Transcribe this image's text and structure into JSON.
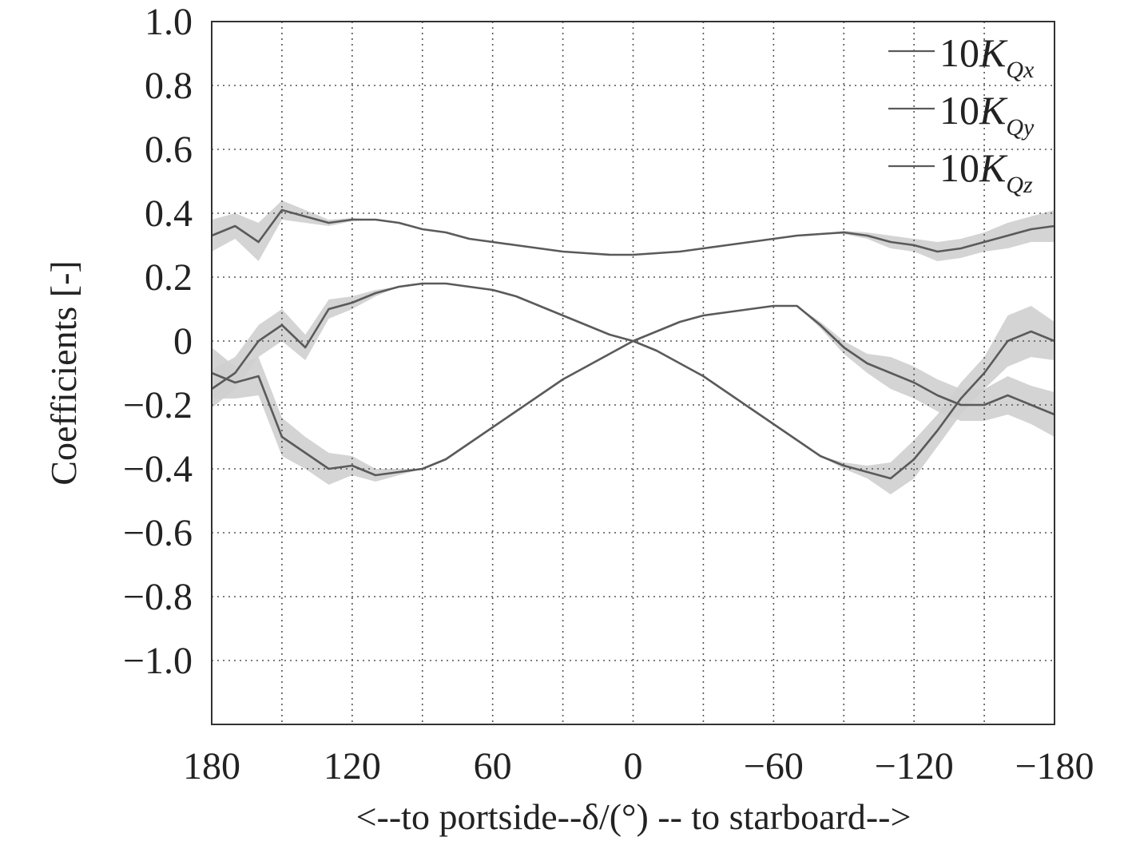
{
  "chart_data": {
    "type": "line",
    "title": "",
    "xlabel": "<--to portside--δ/(°) -- to starboard-->",
    "ylabel": "Coefficients [-]",
    "xlim": [
      180,
      -180
    ],
    "ylim": [
      -1.2,
      1.0
    ],
    "x_reversed": true,
    "x_ticks": [
      180,
      120,
      60,
      0,
      -60,
      -120,
      -180
    ],
    "x_tick_labels": [
      "180",
      "120",
      "60",
      "0",
      "−60",
      "−120",
      "−180"
    ],
    "y_ticks": [
      1.0,
      0.8,
      0.6,
      0.4,
      0.2,
      0,
      -0.2,
      -0.4,
      -0.6,
      -0.8,
      -1.0
    ],
    "y_tick_labels": [
      "1.0",
      "0.8",
      "0.6",
      "0.4",
      "0.2",
      "0",
      "−0.2",
      "−0.4",
      "−0.6",
      "−0.8",
      "−1.0"
    ],
    "grid": true,
    "grid_x_step": 30,
    "grid_y_step": 0.2,
    "legend_position": "top-right",
    "line_color": "#5a5a5a",
    "band_color": "#cfcfcf",
    "series": [
      {
        "name": "10K_Qx",
        "legend_prefix": "10",
        "legend_symbol": "K",
        "legend_sub": "Qx",
        "x": [
          180,
          170,
          160,
          150,
          140,
          130,
          120,
          110,
          100,
          90,
          80,
          70,
          60,
          50,
          40,
          30,
          20,
          10,
          0,
          -10,
          -20,
          -30,
          -40,
          -50,
          -60,
          -70,
          -80,
          -90,
          -100,
          -110,
          -120,
          -130,
          -140,
          -150,
          -160,
          -170,
          -180
        ],
        "values": [
          0.33,
          0.36,
          0.31,
          0.41,
          0.39,
          0.37,
          0.38,
          0.38,
          0.37,
          0.35,
          0.34,
          0.32,
          0.31,
          0.3,
          0.29,
          0.28,
          0.275,
          0.27,
          0.27,
          0.275,
          0.28,
          0.29,
          0.3,
          0.31,
          0.32,
          0.33,
          0.335,
          0.34,
          0.33,
          0.31,
          0.3,
          0.28,
          0.29,
          0.31,
          0.33,
          0.35,
          0.36
        ],
        "band": [
          0.05,
          0.04,
          0.06,
          0.03,
          0.02,
          0.01,
          0.005,
          0,
          0,
          0,
          0,
          0,
          0,
          0,
          0,
          0,
          0,
          0,
          0,
          0,
          0,
          0,
          0,
          0,
          0,
          0,
          0,
          0.005,
          0.01,
          0.02,
          0.02,
          0.03,
          0.03,
          0.03,
          0.04,
          0.04,
          0.05
        ]
      },
      {
        "name": "10K_Qy",
        "legend_prefix": "10",
        "legend_symbol": "K",
        "legend_sub": "Qy",
        "x": [
          180,
          170,
          160,
          150,
          140,
          130,
          120,
          110,
          100,
          90,
          80,
          70,
          60,
          50,
          40,
          30,
          20,
          10,
          0,
          -10,
          -20,
          -30,
          -40,
          -50,
          -60,
          -70,
          -80,
          -90,
          -100,
          -110,
          -120,
          -130,
          -140,
          -150,
          -160,
          -170,
          -180
        ],
        "values": [
          -0.15,
          -0.1,
          0.0,
          0.05,
          -0.02,
          0.1,
          0.12,
          0.15,
          0.17,
          0.18,
          0.18,
          0.17,
          0.16,
          0.14,
          0.11,
          0.08,
          0.05,
          0.02,
          0.0,
          -0.03,
          -0.07,
          -0.11,
          -0.16,
          -0.21,
          -0.26,
          -0.31,
          -0.36,
          -0.39,
          -0.41,
          -0.43,
          -0.37,
          -0.28,
          -0.18,
          -0.1,
          0.0,
          0.03,
          0.0
        ],
        "band": [
          0.06,
          0.05,
          0.05,
          0.05,
          0.04,
          0.03,
          0.02,
          0.01,
          0,
          0,
          0,
          0,
          0,
          0,
          0,
          0,
          0,
          0,
          0,
          0,
          0,
          0,
          0,
          0,
          0,
          0,
          0,
          0.01,
          0.02,
          0.05,
          0.06,
          0.05,
          0.05,
          0.05,
          0.08,
          0.08,
          0.06
        ]
      },
      {
        "name": "10K_Qz",
        "legend_prefix": "10",
        "legend_symbol": "K",
        "legend_sub": "Qz",
        "x": [
          180,
          170,
          160,
          150,
          140,
          130,
          120,
          110,
          100,
          90,
          80,
          70,
          60,
          50,
          40,
          30,
          20,
          10,
          0,
          -10,
          -20,
          -30,
          -40,
          -50,
          -60,
          -70,
          -80,
          -90,
          -100,
          -110,
          -120,
          -130,
          -140,
          -150,
          -160,
          -170,
          -180
        ],
        "values": [
          -0.1,
          -0.13,
          -0.11,
          -0.3,
          -0.35,
          -0.4,
          -0.39,
          -0.42,
          -0.41,
          -0.4,
          -0.37,
          -0.32,
          -0.27,
          -0.22,
          -0.17,
          -0.12,
          -0.08,
          -0.04,
          0.0,
          0.03,
          0.06,
          0.08,
          0.09,
          0.1,
          0.11,
          0.11,
          0.05,
          -0.02,
          -0.07,
          -0.1,
          -0.13,
          -0.17,
          -0.2,
          -0.2,
          -0.17,
          -0.2,
          -0.23
        ],
        "band": [
          0.08,
          0.05,
          0.06,
          0.06,
          0.05,
          0.05,
          0.03,
          0.02,
          0.01,
          0,
          0,
          0,
          0,
          0,
          0,
          0,
          0,
          0,
          0,
          0,
          0,
          0,
          0,
          0,
          0,
          0,
          0.01,
          0.02,
          0.03,
          0.05,
          0.05,
          0.05,
          0.05,
          0.05,
          0.06,
          0.06,
          0.07
        ]
      }
    ]
  }
}
